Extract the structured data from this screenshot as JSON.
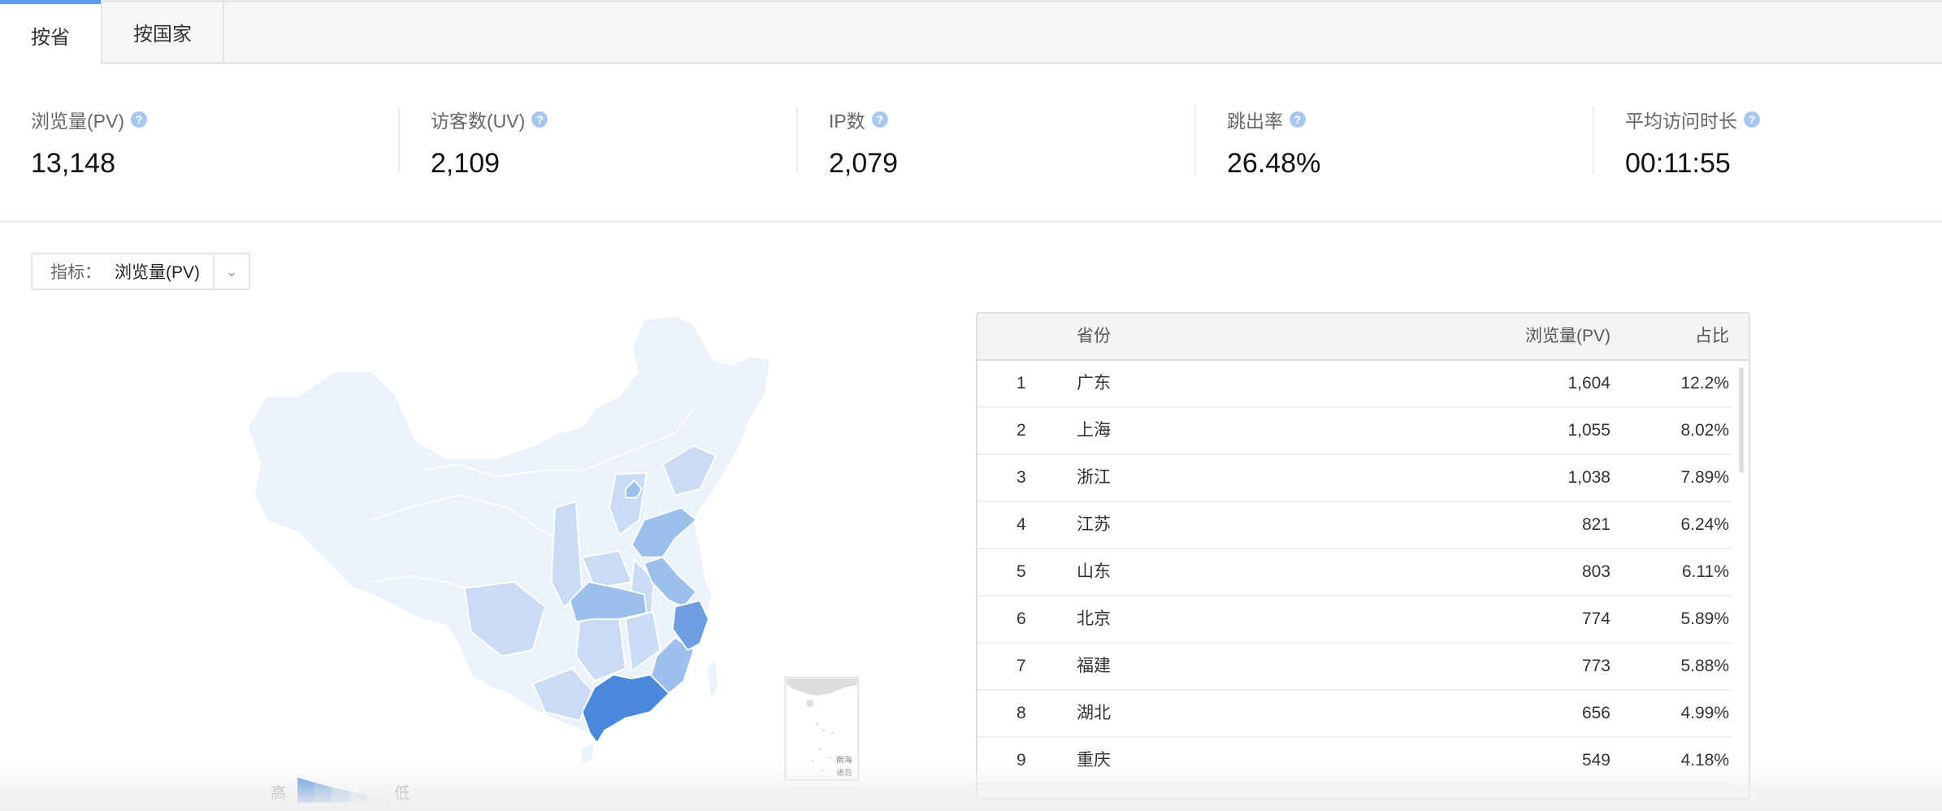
{
  "tabs": [
    {
      "label": "按省",
      "active": true
    },
    {
      "label": "按国家",
      "active": false
    }
  ],
  "stats": [
    {
      "label": "浏览量(PV)",
      "value": "13,148"
    },
    {
      "label": "访客数(UV)",
      "value": "2,109"
    },
    {
      "label": "IP数",
      "value": "2,079"
    },
    {
      "label": "跳出率",
      "value": "26.48%"
    },
    {
      "label": "平均访问时长",
      "value": "00:11:55"
    }
  ],
  "help_icon": "?",
  "metric_select": {
    "label": "指标：",
    "value": "浏览量(PV)"
  },
  "map": {
    "legend_high": "高",
    "legend_low": "低",
    "inset_label_1": "南海",
    "inset_label_2": "诸岛",
    "colors": {
      "level1": "#4a88db",
      "level2": "#6d9fe0",
      "level3": "#9dbfec",
      "level4": "#cadcf4",
      "level5": "#ebf2fb"
    }
  },
  "table": {
    "headers": {
      "province": "省份",
      "pv": "浏览量(PV)",
      "ratio": "占比"
    },
    "rows": [
      {
        "rank": "1",
        "province": "广东",
        "pv": "1,604",
        "ratio": "12.2%"
      },
      {
        "rank": "2",
        "province": "上海",
        "pv": "1,055",
        "ratio": "8.02%"
      },
      {
        "rank": "3",
        "province": "浙江",
        "pv": "1,038",
        "ratio": "7.89%"
      },
      {
        "rank": "4",
        "province": "江苏",
        "pv": "821",
        "ratio": "6.24%"
      },
      {
        "rank": "5",
        "province": "山东",
        "pv": "803",
        "ratio": "6.11%"
      },
      {
        "rank": "6",
        "province": "北京",
        "pv": "774",
        "ratio": "5.89%"
      },
      {
        "rank": "7",
        "province": "福建",
        "pv": "773",
        "ratio": "5.88%"
      },
      {
        "rank": "8",
        "province": "湖北",
        "pv": "656",
        "ratio": "4.99%"
      },
      {
        "rank": "9",
        "province": "重庆",
        "pv": "549",
        "ratio": "4.18%"
      }
    ]
  }
}
